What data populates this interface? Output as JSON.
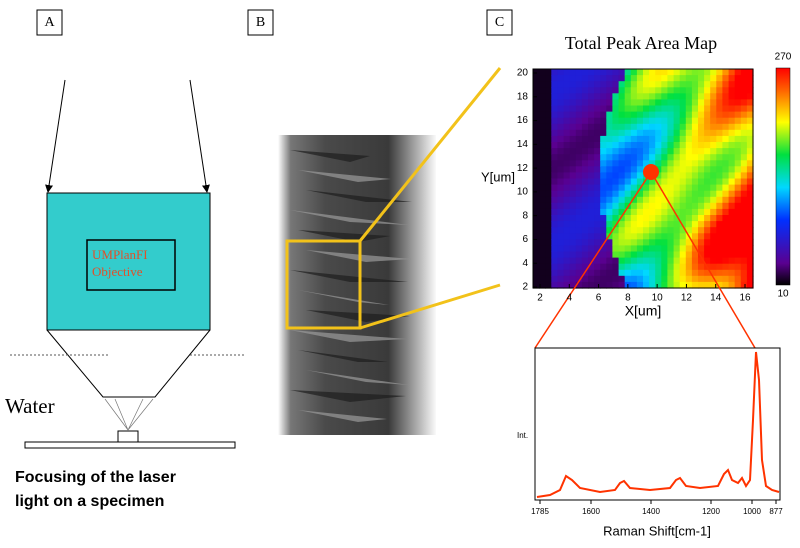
{
  "panels": {
    "a": {
      "label": "A",
      "objective": [
        "UMPlanFI",
        "Objective"
      ],
      "medium": "Water",
      "caption": [
        "Focusing of the laser",
        "light on a specimen"
      ]
    },
    "b": {
      "label": "B"
    },
    "c": {
      "label": "C",
      "map_title": "Total Peak Area Map",
      "map_y_label": "Y[um]",
      "map_x_label": "X[um]",
      "map_xticks": [
        "2",
        "4",
        "6",
        "8",
        "10",
        "12",
        "14",
        "16"
      ],
      "map_yticks": [
        "2",
        "4",
        "6",
        "8",
        "10",
        "12",
        "14",
        "16",
        "18",
        "20"
      ],
      "colorbar_labels": [
        "270",
        "10"
      ],
      "spectrum_y_label": "Int.",
      "spectrum_x_label": "Raman Shift[cm-1]",
      "spectrum_xticks": [
        "1785",
        "1600",
        "1400",
        "1200",
        "1000",
        "877"
      ]
    }
  }
}
